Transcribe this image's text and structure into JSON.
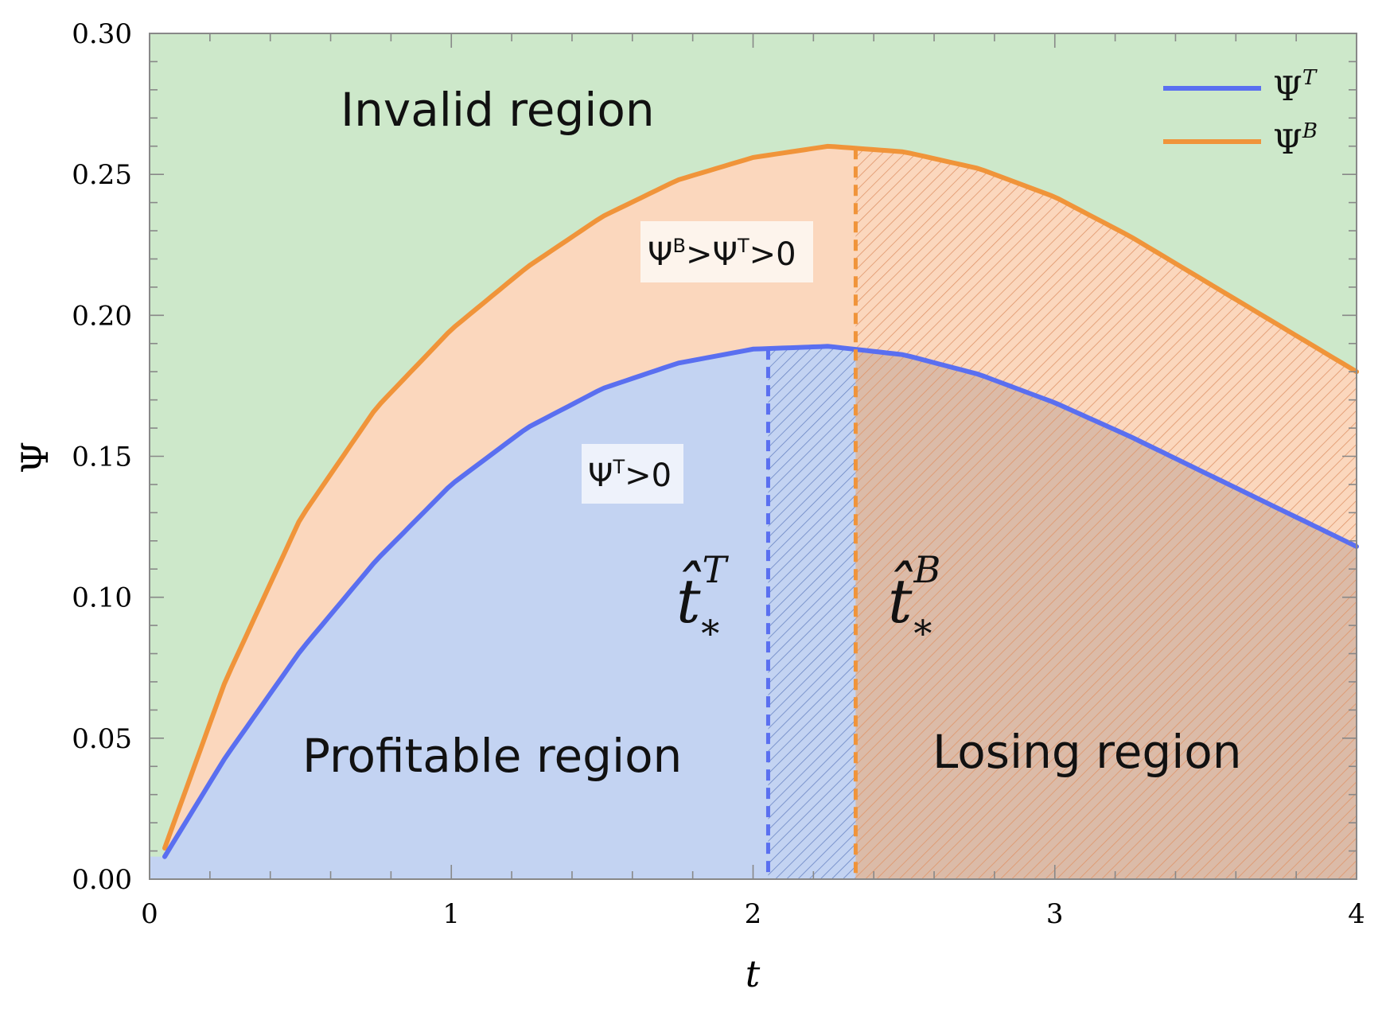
{
  "chart_data": {
    "type": "area",
    "xlabel": "t",
    "ylabel": "Ψ",
    "xlim": [
      0,
      4
    ],
    "ylim": [
      0,
      0.3
    ],
    "x_ticks": [
      "0",
      "1",
      "2",
      "3",
      "4"
    ],
    "y_ticks": [
      "0.00",
      "0.05",
      "0.10",
      "0.15",
      "0.20",
      "0.25",
      "0.30"
    ],
    "grid": false,
    "legend_position": "top-right",
    "series": [
      {
        "name": "Ψ",
        "name_sup": "T",
        "color": "#5a6ff0",
        "x": [
          0.05,
          0.25,
          0.5,
          0.75,
          1.0,
          1.25,
          1.5,
          1.75,
          2.0,
          2.25,
          2.5,
          2.75,
          3.0,
          3.25,
          3.5,
          3.75,
          4.0
        ],
        "y": [
          0.008,
          0.043,
          0.081,
          0.113,
          0.14,
          0.16,
          0.174,
          0.183,
          0.188,
          0.189,
          0.186,
          0.179,
          0.169,
          0.157,
          0.144,
          0.131,
          0.118
        ]
      },
      {
        "name": "Ψ",
        "name_sup": "B",
        "color": "#f0943a",
        "x": [
          0.05,
          0.25,
          0.5,
          0.75,
          1.0,
          1.25,
          1.5,
          1.75,
          2.0,
          2.25,
          2.5,
          2.75,
          3.0,
          3.25,
          3.5,
          3.75,
          4.0
        ],
        "y": [
          0.011,
          0.07,
          0.128,
          0.167,
          0.195,
          0.217,
          0.235,
          0.248,
          0.256,
          0.26,
          0.258,
          0.252,
          0.242,
          0.228,
          0.212,
          0.196,
          0.18
        ]
      }
    ],
    "t_star_T": 2.05,
    "t_star_B": 2.34,
    "annotations": {
      "invalid_region": "Invalid region",
      "profitable_region": "Profitable region",
      "losing_region": "Losing region",
      "cond_BT": {
        "psi1": "Ψ",
        "sup1": "B",
        "op1": ">Ψ",
        "sup2": "T",
        "op2": ">0"
      },
      "cond_T": {
        "psi1": "Ψ",
        "sup1": "T",
        "op1": ">0"
      },
      "t_star_T_label": {
        "base": "t̂",
        "sub": "*",
        "sup": "T"
      },
      "t_star_B_label": {
        "base": "t̂",
        "sub": "*",
        "sup": "B"
      }
    },
    "colors": {
      "invalid_fill": "#cde8ca",
      "between_fill": "#fbd7bd",
      "profitable_fill": "#c3d3f2",
      "losing_fill": "#dbbba8",
      "hatch_blue": "#6b86c4",
      "hatch_orange": "#e0956a"
    }
  }
}
